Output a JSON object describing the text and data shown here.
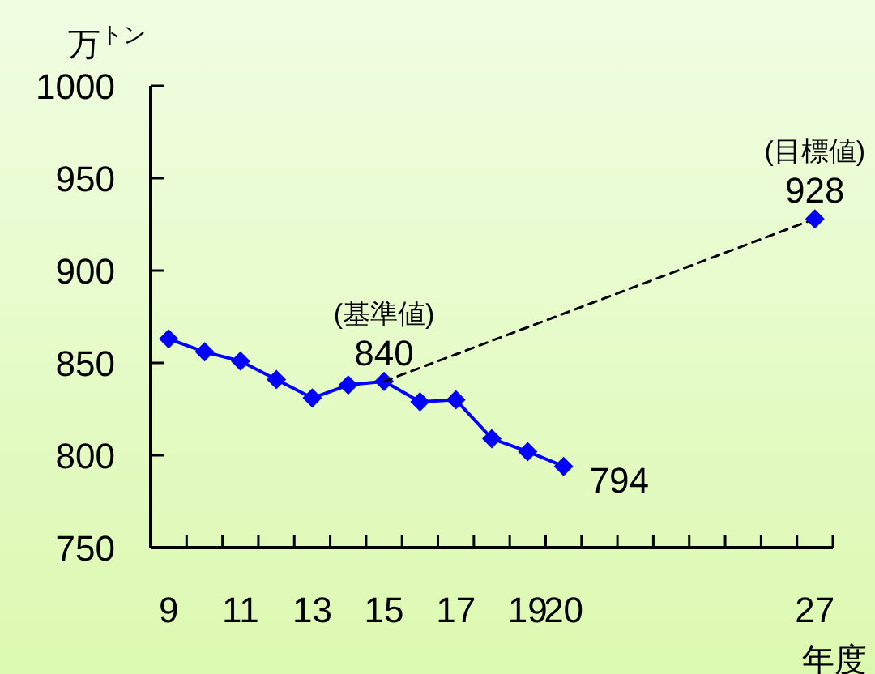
{
  "chart_data": {
    "type": "line",
    "ylabel": "万$^{トン}$",
    "xlabel": "年度",
    "xlim": [
      8.5,
      27.5
    ],
    "xticks": [
      {
        "value": 9,
        "label": "9"
      },
      {
        "value": 11,
        "label": "11"
      },
      {
        "value": 13,
        "label": "13"
      },
      {
        "value": 15,
        "label": "15"
      },
      {
        "value": 17,
        "label": "17"
      },
      {
        "value": 19,
        "label": "19"
      },
      {
        "value": 20,
        "label": "20"
      },
      {
        "value": 27,
        "label": "27"
      },
      {
        "value": 9.5,
        "label": null
      },
      {
        "value": 10.5,
        "label": null
      },
      {
        "value": 11.5,
        "label": null
      },
      {
        "value": 12.5,
        "label": null
      },
      {
        "value": 13.5,
        "label": null
      },
      {
        "value": 14.5,
        "label": null
      },
      {
        "value": 15.5,
        "label": null
      },
      {
        "value": 16.5,
        "label": null
      },
      {
        "value": 17.5,
        "label": null
      },
      {
        "value": 18.5,
        "label": null
      },
      {
        "value": 19.5,
        "label": null
      },
      {
        "value": 20.5,
        "label": null
      },
      {
        "value": 21.5,
        "label": null
      },
      {
        "value": 22.5,
        "label": null
      },
      {
        "value": 23.5,
        "label": null
      },
      {
        "value": 24.5,
        "label": null
      },
      {
        "value": 25.5,
        "label": null
      },
      {
        "value": 26.5,
        "label": null
      },
      {
        "value": 27.5,
        "label": null
      }
    ],
    "ylim": [
      750,
      1000
    ],
    "yticks": [
      750,
      800,
      850,
      900,
      950,
      1000
    ],
    "series": [
      {
        "color": "#0000ff",
        "marker": "diamond",
        "line_style": "solid",
        "x": [
          9,
          10,
          11,
          12,
          13,
          14,
          15,
          16,
          17,
          18,
          19,
          20
        ],
        "values": [
          863,
          856,
          851,
          841,
          831,
          838,
          840,
          829,
          830,
          809,
          802,
          794
        ],
        "value_labels": [
          null,
          null,
          null,
          null,
          null,
          null,
          "840",
          null,
          null,
          null,
          null,
          "794"
        ]
      },
      {
        "type": "line",
        "color": "#000000",
        "marker": "none",
        "line_style": "dashed",
        "x": [
          15,
          27
        ],
        "values": [
          840,
          928
        ]
      },
      {
        "type": "scatter",
        "color": "#0000ff",
        "marker": "diamond",
        "x": [
          27
        ],
        "values": [
          928
        ],
        "value_labels": [
          "928"
        ]
      }
    ],
    "annotations": [
      {
        "text": "(基準値)",
        "x": 15,
        "y": 840
      },
      {
        "text": "(目標値)",
        "x": 27,
        "y": 928
      }
    ]
  }
}
